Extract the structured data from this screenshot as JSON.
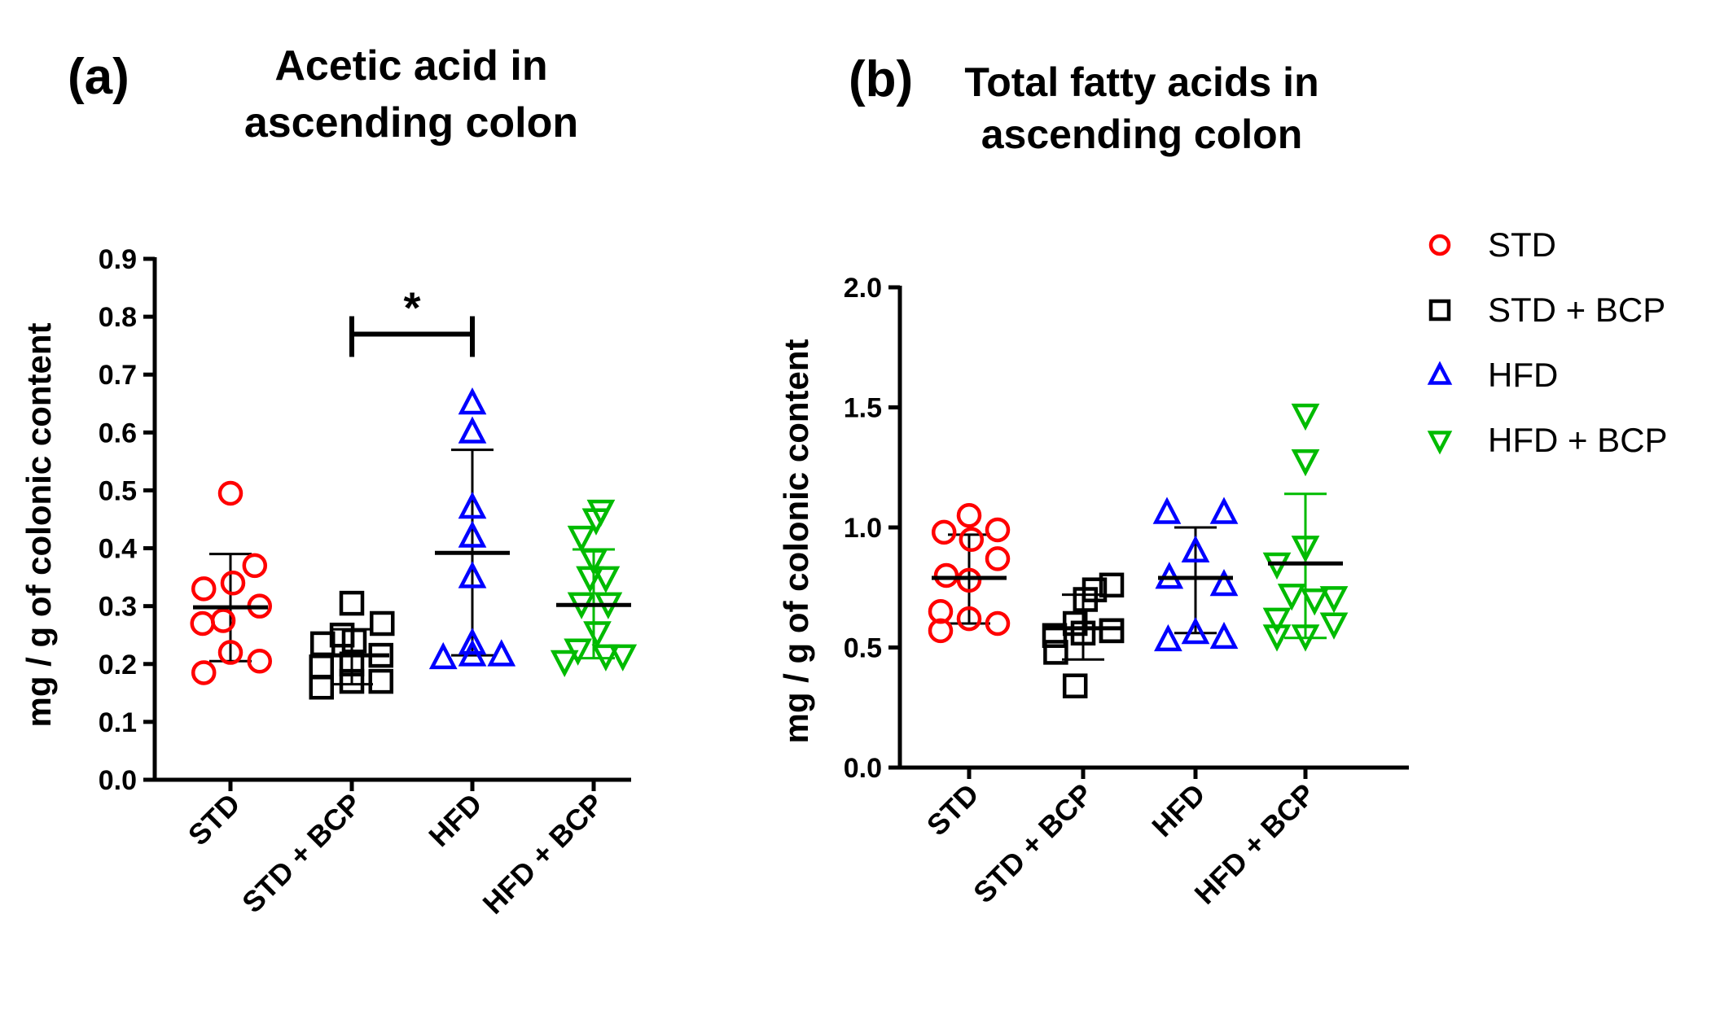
{
  "legend": {
    "items": [
      {
        "label": "STD",
        "color": "#ff0000",
        "marker": "circle-icon"
      },
      {
        "label": "STD + BCP",
        "color": "#000000",
        "marker": "square-icon"
      },
      {
        "label": "HFD",
        "color": "#0000ff",
        "marker": "triangle-up-icon"
      },
      {
        "label": "HFD + BCP",
        "color": "#00bb00",
        "marker": "triangle-down-icon"
      }
    ]
  },
  "chart_data": [
    {
      "type": "scatter",
      "panel_label": "(a)",
      "title_lines": [
        "Acetic acid in",
        "ascending colon"
      ],
      "xlabel": "",
      "ylabel": "mg / g of colonic content",
      "ylim": [
        0,
        0.9
      ],
      "yticks": [
        "0.0",
        "0.1",
        "0.2",
        "0.3",
        "0.4",
        "0.5",
        "0.6",
        "0.7",
        "0.8",
        "0.9"
      ],
      "categories": [
        "STD",
        "STD + BCP",
        "HFD",
        "HFD + BCP"
      ],
      "series": [
        {
          "name": "STD",
          "points": [
            [
              -0.22,
              0.185
            ],
            [
              -0.23,
              0.27
            ],
            [
              -0.22,
              0.33
            ],
            [
              0,
              0.495
            ],
            [
              0.2,
              0.37
            ],
            [
              0.24,
              0.3
            ],
            [
              0.02,
              0.34
            ],
            [
              0,
              0.22
            ],
            [
              0.24,
              0.205
            ],
            [
              -0.06,
              0.275
            ]
          ],
          "mean": 0.298,
          "sd_low": 0.205,
          "sd_high": 0.39
        },
        {
          "name": "STD + BCP",
          "points": [
            [
              -0.25,
              0.16
            ],
            [
              -0.25,
              0.195
            ],
            [
              -0.24,
              0.235
            ],
            [
              0,
              0.305
            ],
            [
              0.25,
              0.27
            ],
            [
              0.24,
              0.215
            ],
            [
              0.24,
              0.17
            ],
            [
              0.02,
              0.24
            ],
            [
              0,
              0.2
            ],
            [
              0,
              0.17
            ],
            [
              -0.08,
              0.25
            ]
          ],
          "mean": 0.215,
          "sd_low": 0.165,
          "sd_high": 0.26
        },
        {
          "name": "HFD",
          "points": [
            [
              -0.24,
              0.21
            ],
            [
              0,
              0.215
            ],
            [
              0.24,
              0.215
            ],
            [
              0,
              0.235
            ],
            [
              0,
              0.35
            ],
            [
              0,
              0.42
            ],
            [
              0,
              0.47
            ],
            [
              0,
              0.6
            ],
            [
              0,
              0.65
            ]
          ],
          "mean": 0.392,
          "sd_low": 0.215,
          "sd_high": 0.57
        },
        {
          "name": "HFD + BCP",
          "points": [
            [
              -0.24,
              0.205
            ],
            [
              -0.13,
              0.225
            ],
            [
              0.1,
              0.215
            ],
            [
              0.24,
              0.215
            ],
            [
              0.03,
              0.255
            ],
            [
              -0.1,
              0.305
            ],
            [
              0.12,
              0.305
            ],
            [
              -0.03,
              0.35
            ],
            [
              0.1,
              0.35
            ],
            [
              0,
              0.38
            ],
            [
              -0.1,
              0.42
            ],
            [
              0.02,
              0.45
            ],
            [
              0.06,
              0.465
            ]
          ],
          "mean": 0.302,
          "sd_low": 0.21,
          "sd_high": 0.398
        }
      ],
      "annotation": {
        "text": "*",
        "between": [
          "STD + BCP",
          "HFD"
        ],
        "y": 0.77
      }
    },
    {
      "type": "scatter",
      "panel_label": "(b)",
      "title_lines": [
        "Total fatty acids in",
        "ascending colon"
      ],
      "xlabel": "",
      "ylabel": "mg / g of colonic content",
      "ylim": [
        0,
        2.0
      ],
      "yticks": [
        "0.0",
        "0.5",
        "1.0",
        "1.5",
        "2.0"
      ],
      "categories": [
        "STD",
        "STD + BCP",
        "HFD",
        "HFD + BCP"
      ],
      "series": [
        {
          "name": "STD",
          "points": [
            [
              -0.25,
              0.57
            ],
            [
              -0.25,
              0.65
            ],
            [
              -0.2,
              0.8
            ],
            [
              -0.22,
              0.98
            ],
            [
              0,
              1.05
            ],
            [
              0.25,
              0.99
            ],
            [
              0.25,
              0.87
            ],
            [
              0.02,
              0.95
            ],
            [
              0,
              0.78
            ],
            [
              0,
              0.62
            ],
            [
              0.25,
              0.6
            ]
          ],
          "mean": 0.79,
          "sd_low": 0.6,
          "sd_high": 0.97
        },
        {
          "name": "STD + BCP",
          "points": [
            [
              -0.07,
              0.34
            ],
            [
              -0.25,
              0.55
            ],
            [
              -0.24,
              0.48
            ],
            [
              0,
              0.56
            ],
            [
              0.25,
              0.57
            ],
            [
              -0.07,
              0.6
            ],
            [
              0.02,
              0.7
            ],
            [
              0.25,
              0.76
            ],
            [
              0.1,
              0.74
            ],
            [
              0.25,
              0.57
            ]
          ],
          "mean": 0.58,
          "sd_low": 0.45,
          "sd_high": 0.72
        },
        {
          "name": "HFD",
          "points": [
            [
              -0.24,
              0.53
            ],
            [
              0,
              0.56
            ],
            [
              0.25,
              0.54
            ],
            [
              -0.23,
              0.79
            ],
            [
              0.25,
              0.76
            ],
            [
              0,
              0.9
            ],
            [
              -0.25,
              1.06
            ],
            [
              0.25,
              1.06
            ]
          ],
          "mean": 0.79,
          "sd_low": 0.56,
          "sd_high": 1.0
        },
        {
          "name": "HFD + BCP",
          "points": [
            [
              -0.25,
              0.55
            ],
            [
              0,
              0.55
            ],
            [
              0.25,
              0.6
            ],
            [
              -0.25,
              0.62
            ],
            [
              -0.12,
              0.72
            ],
            [
              0.08,
              0.7
            ],
            [
              0.25,
              0.71
            ],
            [
              -0.25,
              0.85
            ],
            [
              0,
              0.92
            ],
            [
              0,
              1.28
            ],
            [
              0,
              1.47
            ]
          ],
          "mean": 0.85,
          "sd_low": 0.54,
          "sd_high": 1.14
        }
      ]
    }
  ]
}
